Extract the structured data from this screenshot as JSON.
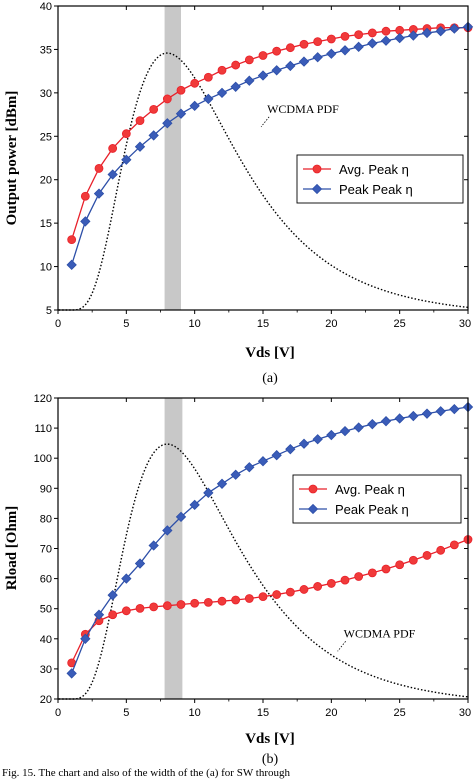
{
  "colors": {
    "avg_series": "#e8202a",
    "avg_series_fill": "#f03a3a",
    "peak_series": "#2d4fa8",
    "peak_series_fill": "#3a5cb8",
    "pdf_curve": "#000000",
    "band": "#c8c8c8"
  },
  "footer_text": "Fig. 15. The chart and also of the width of the  (a) for SW through",
  "chart_data": [
    {
      "type": "line",
      "caption": "(a)",
      "xlabel": "Vds [V]",
      "ylabel": "Output power [dBm]",
      "xlim": [
        0,
        30
      ],
      "ylim": [
        5,
        40
      ],
      "xticks": [
        0,
        5,
        10,
        15,
        20,
        25,
        30
      ],
      "yticks": [
        5,
        10,
        15,
        20,
        25,
        30,
        35,
        40
      ],
      "grid": false,
      "legend_position": "center-right",
      "highlight_band": [
        7.8,
        9.0
      ],
      "annotation": {
        "text": "WCDMA PDF",
        "x": 15.3,
        "y": 27.7
      },
      "series": [
        {
          "name": "Avg. Peak η",
          "marker": "circle",
          "x": [
            1,
            2,
            3,
            4,
            5,
            6,
            7,
            8,
            9,
            10,
            11,
            12,
            13,
            14,
            15,
            16,
            17,
            18,
            19,
            20,
            21,
            22,
            23,
            24,
            25,
            26,
            27,
            28,
            29,
            30
          ],
          "y": [
            13.1,
            18.1,
            21.3,
            23.6,
            25.3,
            26.8,
            28.1,
            29.3,
            30.3,
            31.1,
            31.8,
            32.6,
            33.2,
            33.8,
            34.3,
            34.8,
            35.2,
            35.6,
            35.9,
            36.2,
            36.5,
            36.7,
            36.9,
            37.1,
            37.2,
            37.3,
            37.4,
            37.5,
            37.5,
            37.5
          ]
        },
        {
          "name": "Peak Peak η",
          "marker": "diamond",
          "x": [
            1,
            2,
            3,
            4,
            5,
            6,
            7,
            8,
            9,
            10,
            11,
            12,
            13,
            14,
            15,
            16,
            17,
            18,
            19,
            20,
            21,
            22,
            23,
            24,
            25,
            26,
            27,
            28,
            29,
            30
          ],
          "y": [
            10.2,
            15.2,
            18.4,
            20.6,
            22.3,
            23.8,
            25.1,
            26.5,
            27.6,
            28.5,
            29.3,
            30.0,
            30.7,
            31.4,
            32.0,
            32.6,
            33.1,
            33.6,
            34.1,
            34.5,
            34.9,
            35.3,
            35.7,
            36.0,
            36.3,
            36.6,
            36.9,
            37.1,
            37.4,
            37.6
          ]
        }
      ],
      "pdf": {
        "peak_x": 8,
        "peak_y": 34.5,
        "base_y": 5,
        "end_y": 5.3
      }
    },
    {
      "type": "line",
      "caption": "(b)",
      "xlabel": "Vds [V]",
      "ylabel": "Rload [Ohm]",
      "xlim": [
        0,
        30
      ],
      "ylim": [
        20,
        120
      ],
      "xticks": [
        0,
        5,
        10,
        15,
        20,
        25,
        30
      ],
      "yticks": [
        20,
        30,
        40,
        50,
        60,
        70,
        80,
        90,
        100,
        110,
        120
      ],
      "grid": false,
      "legend_position": "center-right",
      "highlight_band": [
        7.8,
        9.1
      ],
      "annotation": {
        "text": "WCDMA PDF",
        "x": 20.9,
        "y": 40.5
      },
      "series": [
        {
          "name": "Avg. Peak η",
          "marker": "circle",
          "x": [
            1,
            2,
            3,
            4,
            5,
            6,
            7,
            8,
            9,
            10,
            11,
            12,
            13,
            14,
            15,
            16,
            17,
            18,
            19,
            20,
            21,
            22,
            23,
            24,
            25,
            26,
            27,
            28,
            29,
            30
          ],
          "y": [
            32.0,
            41.5,
            46.0,
            48.0,
            49.3,
            50.1,
            50.6,
            51.0,
            51.4,
            51.8,
            52.1,
            52.5,
            52.9,
            53.4,
            54.0,
            54.7,
            55.5,
            56.4,
            57.4,
            58.4,
            59.5,
            60.7,
            61.9,
            63.2,
            64.6,
            66.1,
            67.7,
            69.4,
            71.2,
            73.0
          ]
        },
        {
          "name": "Peak Peak η",
          "marker": "diamond",
          "x": [
            1,
            2,
            3,
            4,
            5,
            6,
            7,
            8,
            9,
            10,
            11,
            12,
            13,
            14,
            15,
            16,
            17,
            18,
            19,
            20,
            21,
            22,
            23,
            24,
            25,
            26,
            27,
            28,
            29,
            30
          ],
          "y": [
            28.5,
            40.0,
            48.0,
            54.5,
            60.0,
            65.0,
            71.0,
            76.0,
            80.5,
            84.5,
            88.5,
            91.5,
            94.5,
            97.0,
            99.0,
            101.0,
            103.0,
            104.8,
            106.3,
            107.7,
            109.0,
            110.2,
            111.3,
            112.3,
            113.2,
            114.0,
            114.8,
            115.6,
            116.3,
            117.0
          ]
        }
      ],
      "pdf": {
        "peak_x": 8,
        "peak_y": 104.5,
        "base_y": 20,
        "end_y": 20.7
      }
    }
  ]
}
